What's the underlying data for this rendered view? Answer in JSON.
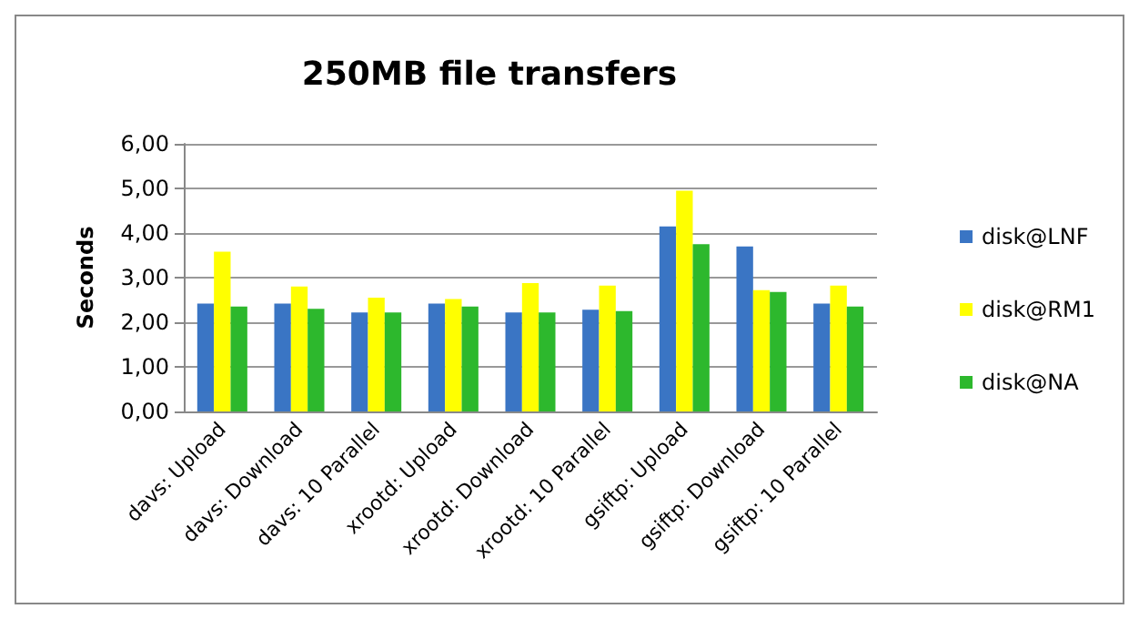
{
  "chart_data": {
    "type": "bar",
    "title": "250MB file transfers",
    "ylabel": "Seconds",
    "categories": [
      "davs: Upload",
      "davs: Download",
      "davs: 10 Parallel",
      "xrootd: Upload",
      "xrootd: Download",
      "xrootd: 10 Parallel",
      "gsiftp: Upload",
      "gsiftp: Download",
      "gsiftp: 10 Parallel"
    ],
    "series": [
      {
        "name": "disk@LNF",
        "color": "#3a75c4",
        "values": [
          2.42,
          2.42,
          2.22,
          2.42,
          2.22,
          2.28,
          4.15,
          3.7,
          2.42
        ]
      },
      {
        "name": "disk@RM1",
        "color": "#ffff00",
        "values": [
          3.58,
          2.8,
          2.55,
          2.52,
          2.88,
          2.82,
          4.95,
          2.72,
          2.82
        ]
      },
      {
        "name": "disk@NA",
        "color": "#2db82d",
        "values": [
          2.35,
          2.3,
          2.22,
          2.35,
          2.22,
          2.25,
          3.75,
          2.68,
          2.35
        ]
      }
    ],
    "ylim": [
      0,
      6
    ],
    "yticks": [
      {
        "value": 0,
        "label": "0,00"
      },
      {
        "value": 1,
        "label": "1,00"
      },
      {
        "value": 2,
        "label": "2,00"
      },
      {
        "value": 3,
        "label": "3,00"
      },
      {
        "value": 4,
        "label": "4,00"
      },
      {
        "value": 5,
        "label": "5,00"
      },
      {
        "value": 6,
        "label": "6,00"
      }
    ],
    "grid": "y",
    "legend": "right"
  }
}
